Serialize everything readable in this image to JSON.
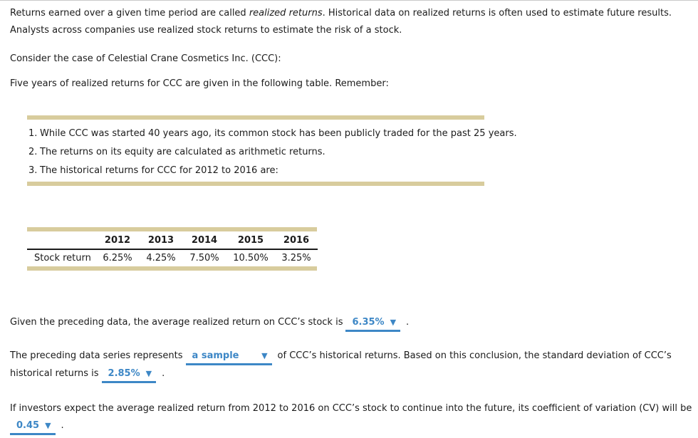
{
  "intro": {
    "before_italic": "Returns earned over a given time period are called ",
    "italic": "realized returns",
    "after_italic": ". Historical data on realized returns is often used to estimate future results.",
    "line2": "Analysts across companies use realized stock returns to estimate the risk of a stock."
  },
  "case_line": "Consider the case of Celestial Crane Cosmetics Inc. (CCC):",
  "table_intro_line": "Five years of realized returns for CCC are given in the following table. Remember:",
  "notes": {
    "items": [
      {
        "num": "1.",
        "text": "While CCC was started 40 years ago, its common stock has been publicly traded for the past 25 years."
      },
      {
        "num": "2.",
        "text": "The returns on its equity are calculated as arithmetic returns."
      },
      {
        "num": "3.",
        "text": "The historical returns for CCC for 2012 to 2016 are:"
      }
    ]
  },
  "returns_table": {
    "row_label": "Stock return",
    "years": [
      "2012",
      "2013",
      "2014",
      "2015",
      "2016"
    ],
    "returns": [
      "6.25%",
      "4.25%",
      "7.50%",
      "10.50%",
      "3.25%"
    ]
  },
  "questions": {
    "q1": {
      "text_before": "Given the preceding data, the average realized return on CCC’s stock is",
      "dropdown_value": "6.35%",
      "text_after": "."
    },
    "q2": {
      "text_before": "The preceding data series represents",
      "dropdown1_value": "a sample",
      "text_after_dropdown1": "of CCC’s historical returns. Based on this conclusion, the standard deviation of CCC’s",
      "line2_before": "historical returns is",
      "dropdown2_value": "2.85%",
      "text_after": "."
    },
    "q3": {
      "line1": "If investors expect the average realized return from 2012 to 2016 on CCC’s stock to continue into the future, its coefficient of variation (CV) will be",
      "dropdown_value": "0.45",
      "text_after": "."
    }
  },
  "icons": {
    "dropdown_arrow": "▼"
  },
  "colors": {
    "accent_blue": "#3d87c6",
    "rule_tan": "#d8cc9d",
    "text": "#1b1b1b"
  }
}
